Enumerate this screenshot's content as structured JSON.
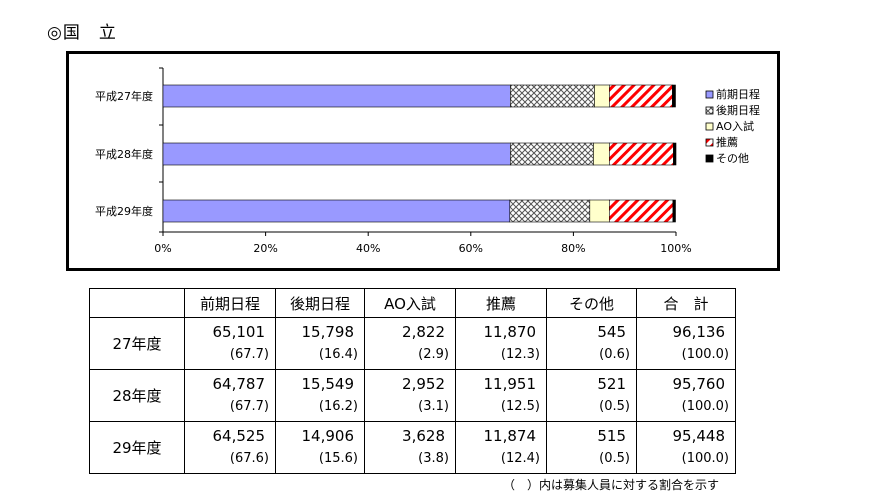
{
  "heading": "◎国　立",
  "chart_data": {
    "type": "bar",
    "orientation": "horizontal",
    "stacked": true,
    "categories": [
      "平成27年度",
      "平成28年度",
      "平成29年度"
    ],
    "series": [
      {
        "name": "前期日程",
        "values": [
          67.7,
          67.7,
          67.6
        ],
        "color": "#9999ff",
        "pattern": "solid"
      },
      {
        "name": "後期日程",
        "values": [
          16.4,
          16.2,
          15.6
        ],
        "color": "#ffffff",
        "pattern": "crosshatch"
      },
      {
        "name": "AO入試",
        "values": [
          2.9,
          3.1,
          3.8
        ],
        "color": "#ffffcc",
        "pattern": "solid"
      },
      {
        "name": "推薦",
        "values": [
          12.3,
          12.5,
          12.4
        ],
        "color": "#ff0000",
        "pattern": "diagonal"
      },
      {
        "name": "その他",
        "values": [
          0.6,
          0.5,
          0.5
        ],
        "color": "#000000",
        "pattern": "solid"
      }
    ],
    "xlim": [
      0,
      100
    ],
    "xticks": [
      "0%",
      "20%",
      "40%",
      "60%",
      "80%",
      "100%"
    ],
    "legend_position": "right",
    "grid": false
  },
  "table": {
    "headers": [
      "前期日程",
      "後期日程",
      "AO入試",
      "推薦",
      "その他",
      "合　計"
    ],
    "rows": [
      {
        "label": "27年度",
        "values": [
          "65,101",
          "15,798",
          "2,822",
          "11,870",
          "545",
          "96,136"
        ],
        "percents": [
          "(67.7)",
          "(16.4)",
          "(2.9)",
          "(12.3)",
          "(0.6)",
          "(100.0)"
        ]
      },
      {
        "label": "28年度",
        "values": [
          "64,787",
          "15,549",
          "2,952",
          "11,951",
          "521",
          "95,760"
        ],
        "percents": [
          "(67.7)",
          "(16.2)",
          "(3.1)",
          "(12.5)",
          "(0.5)",
          "(100.0)"
        ]
      },
      {
        "label": "29年度",
        "values": [
          "64,525",
          "14,906",
          "3,628",
          "11,874",
          "515",
          "95,448"
        ],
        "percents": [
          "(67.6)",
          "(15.6)",
          "(3.8)",
          "(12.4)",
          "(0.5)",
          "(100.0)"
        ]
      }
    ]
  },
  "note": "（　）内は募集人員に対する割合を示す"
}
